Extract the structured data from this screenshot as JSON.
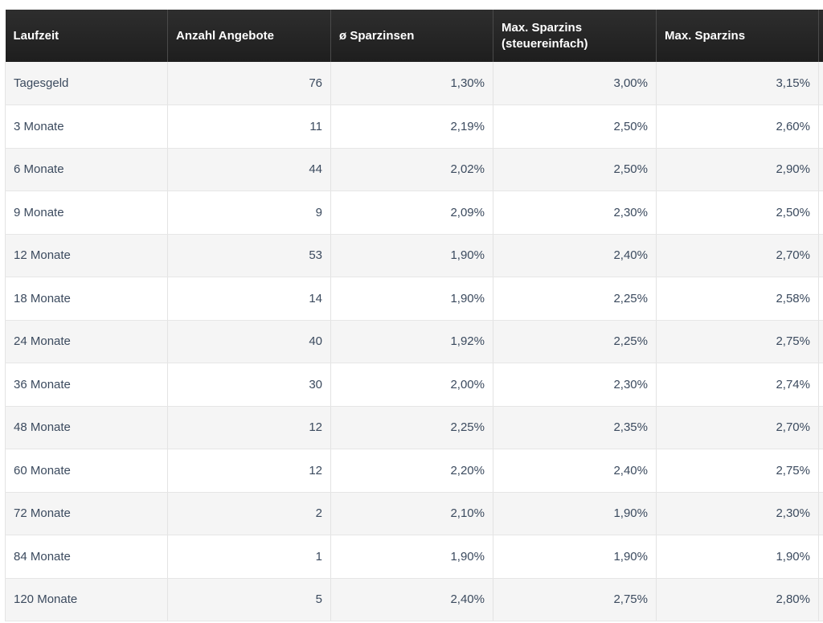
{
  "table": {
    "headers": [
      "Laufzeit",
      "Anzahl Angebote",
      "ø Sparzinsen",
      "Max. Sparzins (steuereinfach)",
      "Max. Sparzins",
      ""
    ],
    "rows": [
      [
        "Tagesgeld",
        "76",
        "1,30%",
        "3,00%",
        "3,15%",
        ""
      ],
      [
        "3 Monate",
        "11",
        "2,19%",
        "2,50%",
        "2,60%",
        ""
      ],
      [
        "6 Monate",
        "44",
        "2,02%",
        "2,50%",
        "2,90%",
        ""
      ],
      [
        "9 Monate",
        "9",
        "2,09%",
        "2,30%",
        "2,50%",
        ""
      ],
      [
        "12 Monate",
        "53",
        "1,90%",
        "2,40%",
        "2,70%",
        ""
      ],
      [
        "18 Monate",
        "14",
        "1,90%",
        "2,25%",
        "2,58%",
        ""
      ],
      [
        "24 Monate",
        "40",
        "1,92%",
        "2,25%",
        "2,75%",
        ""
      ],
      [
        "36 Monate",
        "30",
        "2,00%",
        "2,30%",
        "2,74%",
        ""
      ],
      [
        "48 Monate",
        "12",
        "2,25%",
        "2,35%",
        "2,70%",
        ""
      ],
      [
        "60 Monate",
        "12",
        "2,20%",
        "2,40%",
        "2,75%",
        ""
      ],
      [
        "72 Monate",
        "2",
        "2,10%",
        "1,90%",
        "2,30%",
        ""
      ],
      [
        "84 Monate",
        "1",
        "1,90%",
        "1,90%",
        "1,90%",
        ""
      ],
      [
        "120 Monate",
        "5",
        "2,40%",
        "2,75%",
        "2,80%",
        ""
      ]
    ]
  }
}
